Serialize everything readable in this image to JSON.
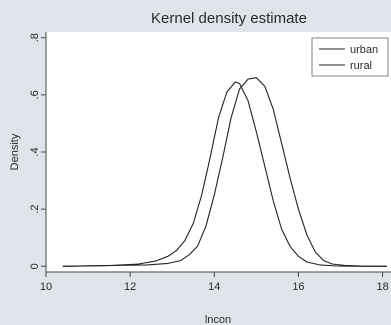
{
  "chart_data": {
    "type": "line",
    "title": "Kernel density estimate",
    "xlabel": "lncon",
    "ylabel": "Density",
    "xlim": [
      10,
      18.2
    ],
    "ylim": [
      -0.02,
      0.82
    ],
    "x_ticks": [
      10,
      12,
      14,
      16,
      18
    ],
    "y_ticks": [
      0,
      0.2,
      0.4,
      0.6,
      0.8
    ],
    "y_tick_labels": [
      "0",
      ".2",
      ".4",
      ".6",
      ".8"
    ],
    "grid": false,
    "legend_position": "top-right",
    "series": [
      {
        "name": "urban",
        "color": "#222222",
        "points": [
          [
            10.4,
            0
          ],
          [
            11.6,
            0.003
          ],
          [
            12.4,
            0.005
          ],
          [
            12.9,
            0.01
          ],
          [
            13.2,
            0.02
          ],
          [
            13.4,
            0.04
          ],
          [
            13.6,
            0.07
          ],
          [
            13.8,
            0.14
          ],
          [
            14.0,
            0.25
          ],
          [
            14.2,
            0.38
          ],
          [
            14.4,
            0.52
          ],
          [
            14.6,
            0.62
          ],
          [
            14.8,
            0.655
          ],
          [
            15.0,
            0.66
          ],
          [
            15.2,
            0.63
          ],
          [
            15.4,
            0.55
          ],
          [
            15.6,
            0.43
          ],
          [
            15.8,
            0.31
          ],
          [
            16.0,
            0.2
          ],
          [
            16.2,
            0.11
          ],
          [
            16.4,
            0.05
          ],
          [
            16.6,
            0.02
          ],
          [
            16.8,
            0.008
          ],
          [
            17.1,
            0.003
          ],
          [
            17.5,
            0.001
          ],
          [
            18.1,
            0
          ]
        ]
      },
      {
        "name": "rural",
        "color": "#222222",
        "points": [
          [
            10.4,
            0
          ],
          [
            11.6,
            0.003
          ],
          [
            12.2,
            0.008
          ],
          [
            12.6,
            0.018
          ],
          [
            12.9,
            0.035
          ],
          [
            13.1,
            0.055
          ],
          [
            13.3,
            0.09
          ],
          [
            13.5,
            0.15
          ],
          [
            13.7,
            0.25
          ],
          [
            13.9,
            0.38
          ],
          [
            14.1,
            0.52
          ],
          [
            14.3,
            0.61
          ],
          [
            14.5,
            0.645
          ],
          [
            14.6,
            0.64
          ],
          [
            14.8,
            0.58
          ],
          [
            15.0,
            0.47
          ],
          [
            15.2,
            0.35
          ],
          [
            15.4,
            0.23
          ],
          [
            15.6,
            0.13
          ],
          [
            15.8,
            0.07
          ],
          [
            16.0,
            0.035
          ],
          [
            16.2,
            0.015
          ],
          [
            16.5,
            0.005
          ],
          [
            16.9,
            0.001
          ],
          [
            17.5,
            0
          ],
          [
            18.1,
            0
          ]
        ]
      }
    ]
  }
}
